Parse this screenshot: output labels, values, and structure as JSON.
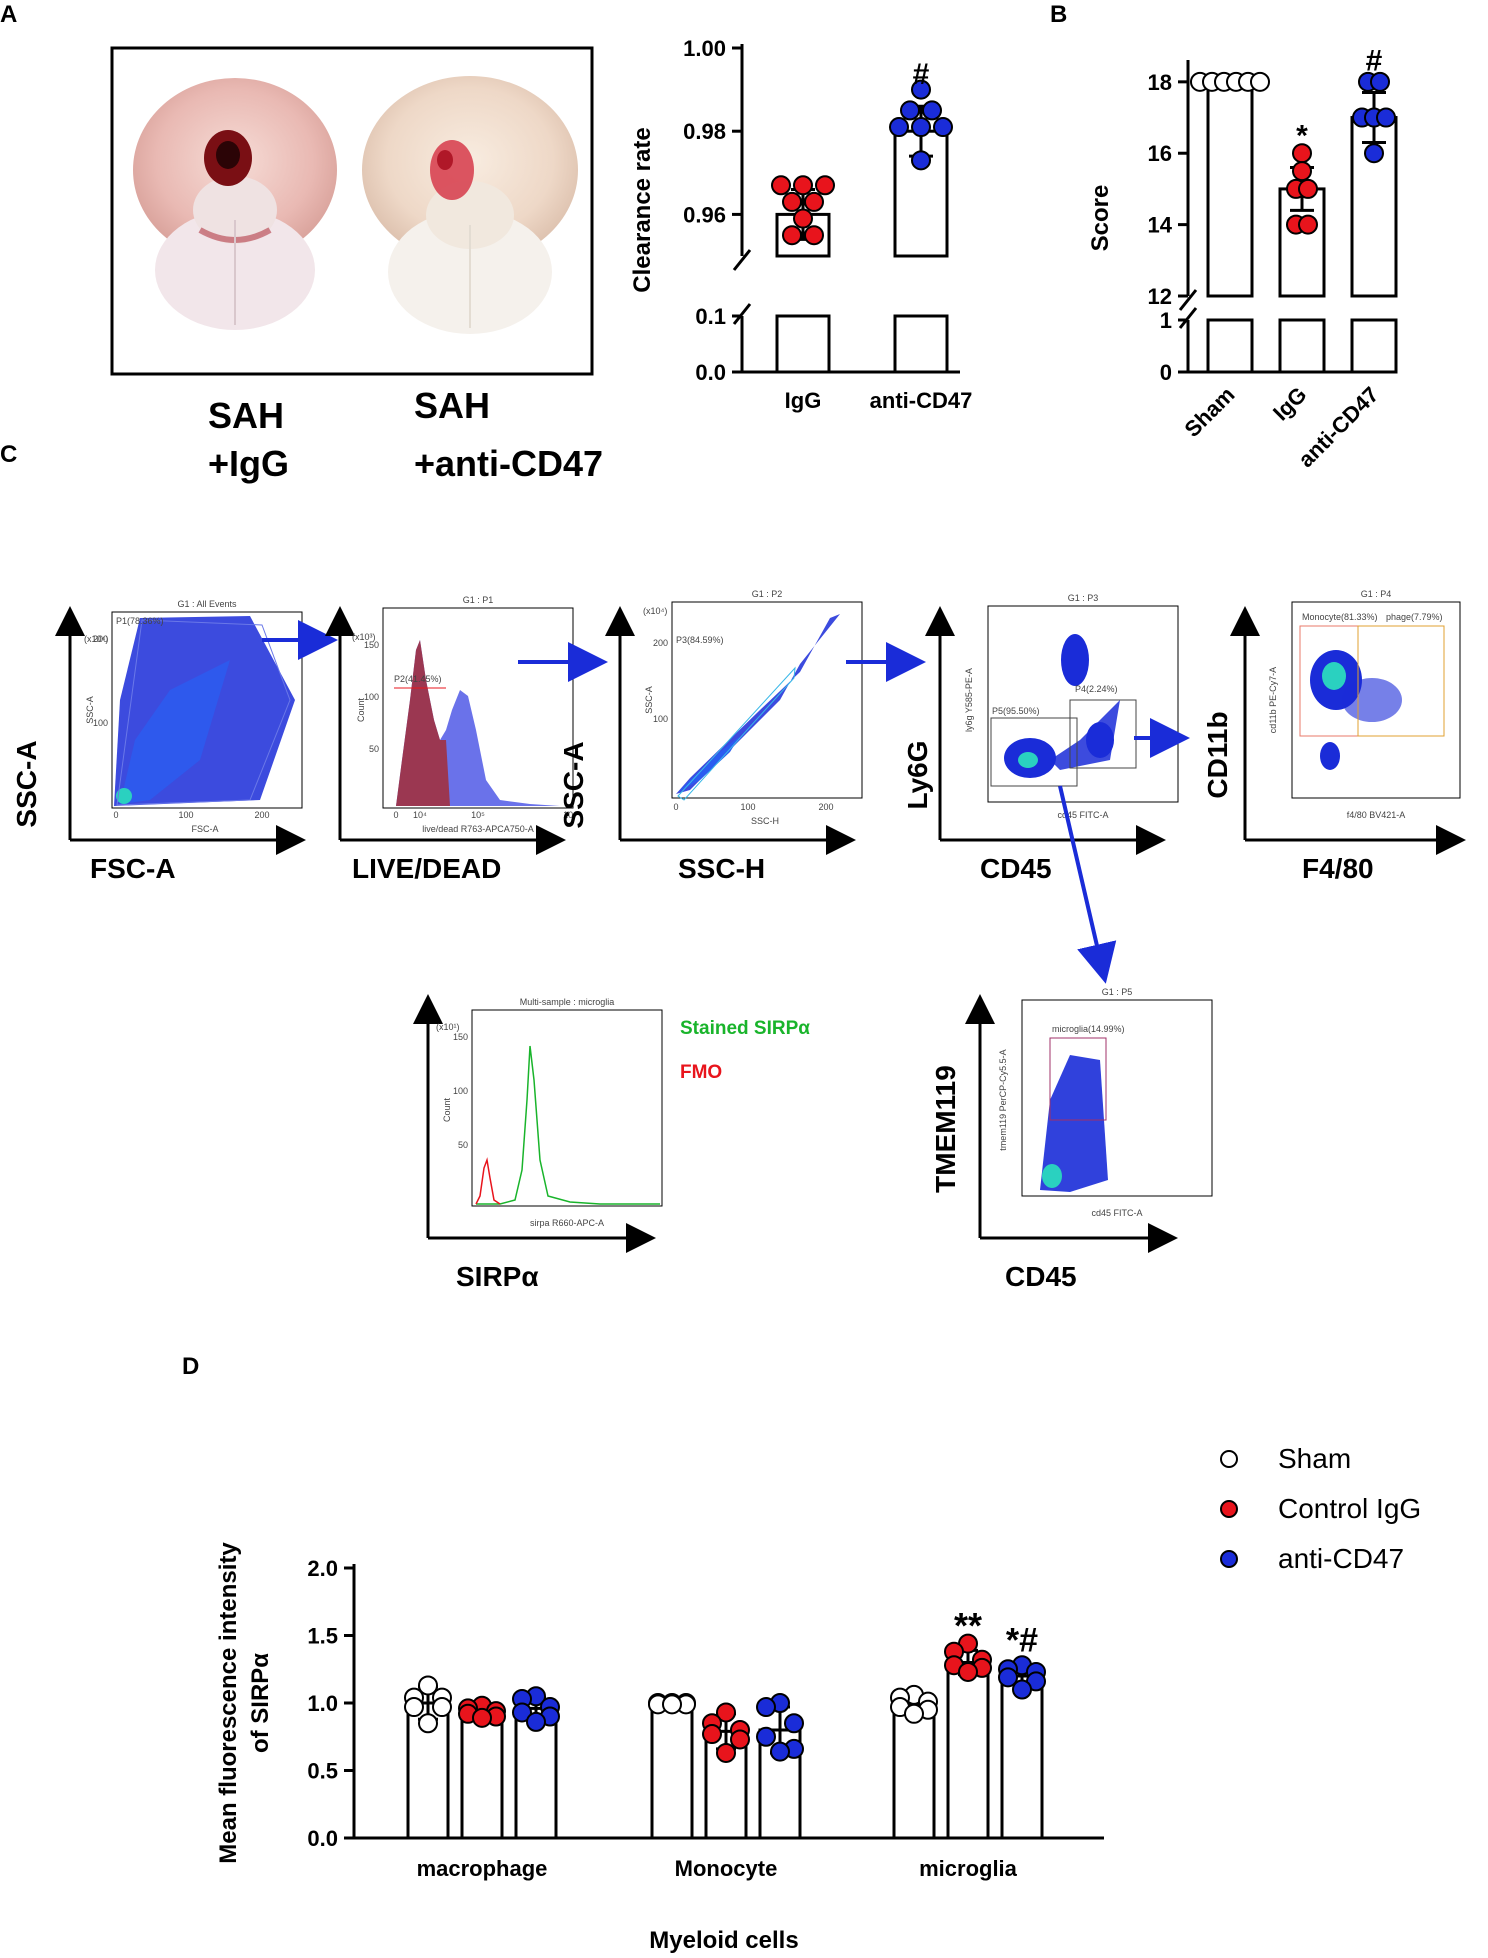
{
  "panel_letters": {
    "a": "A",
    "b": "B",
    "c": "C",
    "d": "D"
  },
  "photo_labels": {
    "left_line1": "SAH",
    "left_line2": "+IgG",
    "right_line1": "SAH",
    "right_line2": "+anti-CD47"
  },
  "colors": {
    "sham": "#ffffff",
    "igg": "#e8141c",
    "anti": "#1a2cd8",
    "blue_flow": "#1a2cd8",
    "green": "#19b42b",
    "red": "#e8141c"
  },
  "chart_data": [
    {
      "id": "A",
      "type": "bar",
      "ylabel": "Clearance rate",
      "categories": [
        "IgG",
        "anti-CD47"
      ],
      "means": [
        0.96,
        0.98
      ],
      "sd": [
        0.006,
        0.006
      ],
      "ylim_upper": [
        0.95,
        1.0
      ],
      "ylim_lower": [
        0.0,
        0.1
      ],
      "yticks_upper": [
        "0.96",
        "0.98",
        "1.00"
      ],
      "yticks_lower": [
        "0.0",
        "0.1"
      ],
      "points": [
        [
          0.967,
          0.967,
          0.967,
          0.963,
          0.963,
          0.959,
          0.955,
          0.955
        ],
        [
          0.99,
          0.985,
          0.985,
          0.981,
          0.981,
          0.981,
          0.973
        ]
      ],
      "annotations": [
        "",
        "#"
      ]
    },
    {
      "id": "B",
      "type": "bar",
      "ylabel": "Score",
      "categories": [
        "Sham",
        "IgG",
        "anti-CD47"
      ],
      "means": [
        18.0,
        15.0,
        17.0
      ],
      "sd": [
        0.0,
        0.6,
        0.7
      ],
      "ylim_upper": [
        12,
        18.5
      ],
      "ylim_lower": [
        0,
        1
      ],
      "yticks_upper": [
        "12",
        "14",
        "16",
        "18"
      ],
      "yticks_lower": [
        "0",
        "1"
      ],
      "points": [
        [
          18,
          18,
          18,
          18,
          18,
          18
        ],
        [
          16,
          15.5,
          15,
          15,
          14,
          14
        ],
        [
          18,
          18,
          17,
          17,
          17,
          16
        ]
      ],
      "annotations": [
        "",
        "*",
        "#"
      ]
    },
    {
      "id": "C-SIRPa-histogram",
      "type": "line",
      "title": "Multi-sample : microglia",
      "xlabel": "SIRPα",
      "series": [
        {
          "name": "Stained SIRPα",
          "color": "#19b42b"
        },
        {
          "name": "FMO",
          "color": "#e8141c"
        }
      ]
    },
    {
      "id": "D",
      "type": "bar",
      "ylabel": "Mean fluorescence intensity of SIRPα",
      "ylabel_line1": "Mean fluorescence intensity",
      "ylabel_line2": "of SIRPα",
      "xlabel": "Myeloid cells",
      "categories": [
        "macrophage",
        "Monocyte",
        "microglia"
      ],
      "ylim": [
        0,
        2.0
      ],
      "yticks": [
        "0.0",
        "0.5",
        "1.0",
        "1.5",
        "2.0"
      ],
      "series": [
        {
          "name": "Sham",
          "means": [
            1.0,
            0.99,
            0.99
          ],
          "sd": [
            0.12,
            0.01,
            0.07
          ],
          "points": [
            [
              1.13,
              1.04,
              1.04,
              0.97,
              0.97,
              0.85
            ],
            [
              1.0,
              1.0,
              1.0,
              0.99,
              0.99,
              0.99
            ],
            [
              1.06,
              1.04,
              1.01,
              0.97,
              0.95,
              0.92
            ]
          ]
        },
        {
          "name": "Control IgG",
          "means": [
            0.93,
            0.79,
            1.3
          ],
          "sd": [
            0.05,
            0.13,
            0.09
          ],
          "points": [
            [
              0.98,
              0.96,
              0.94,
              0.92,
              0.9,
              0.89
            ],
            [
              0.93,
              0.85,
              0.8,
              0.77,
              0.73,
              0.63
            ],
            [
              1.44,
              1.38,
              1.32,
              1.28,
              1.26,
              1.23
            ]
          ]
        },
        {
          "name": "anti-CD47",
          "means": [
            0.96,
            0.8,
            1.2
          ],
          "sd": [
            0.08,
            0.17,
            0.06
          ],
          "points": [
            [
              1.05,
              1.03,
              0.97,
              0.93,
              0.9,
              0.86
            ],
            [
              1.0,
              0.97,
              0.85,
              0.75,
              0.66,
              0.64
            ],
            [
              1.28,
              1.25,
              1.23,
              1.19,
              1.16,
              1.1
            ]
          ]
        }
      ],
      "annotations": {
        "microglia_igg": "**",
        "microglia_anti": "*#"
      },
      "legend": [
        "Sham",
        "Control IgG",
        "anti-CD47"
      ]
    }
  ],
  "flow": {
    "plot1": {
      "title": "G1 : All Events",
      "gate": "P1(78.36%)",
      "y_inner": "SSC-A",
      "x_inner": "FSC-A",
      "exp": "(x10⁴)",
      "ticks_y": [
        "100",
        "200"
      ],
      "ticks_x": [
        "0",
        "100",
        "200"
      ],
      "outer_y": "SSC-A",
      "outer_x": "FSC-A"
    },
    "plot2": {
      "title": "G1 : P1",
      "gate": "P2(41.45%)",
      "y_inner": "Count",
      "x_inner": "live/dead R763-APCA750-A",
      "exp": "(x10³)",
      "ticks_y": [
        "50",
        "100",
        "150"
      ],
      "ticks_x": [
        "0",
        "10⁴",
        "10⁵",
        "10⁶"
      ],
      "outer_x": "LIVE/DEAD"
    },
    "plot3": {
      "title": "G1 : P2",
      "gate": "P3(84.59%)",
      "y_inner": "SSC-A",
      "x_inner": "SSC-H",
      "exp": "(x10⁴)",
      "ticks_y": [
        "100",
        "200"
      ],
      "ticks_x": [
        "0",
        "100",
        "200"
      ],
      "outer_y": "SSC-A",
      "outer_x": "SSC-H"
    },
    "plot4": {
      "title": "G1 : P3",
      "gate_p4": "P4(2.24%)",
      "gate_p5": "P5(95.50%)",
      "y_inner": "ly6g Y585-PE-A",
      "x_inner": "cd45 FITC-A",
      "outer_y": "Ly6G",
      "outer_x": "CD45"
    },
    "plot5": {
      "title": "G1 : P4",
      "gate_mono": "Monocyte(81.33%)",
      "gate_macro": "phage(7.79%)",
      "y_inner": "cd11b PE-Cy7-A",
      "x_inner": "f4/80 BV421-A",
      "outer_y": "CD11b",
      "outer_x": "F4/80"
    },
    "plot6": {
      "title": "G1 : P5",
      "gate": "microglia(14.99%)",
      "y_inner": "tmem119 PerCP-Cy5.5-A",
      "x_inner": "cd45 FITC-A",
      "outer_y": "TMEM119",
      "outer_x": "CD45"
    },
    "plot7": {
      "title": "Multi-sample : microglia",
      "y_inner": "Count",
      "x_inner": "sirpa R660-APC-A",
      "exp": "(x10¹)",
      "ticks_y": [
        "50",
        "100",
        "150"
      ],
      "outer_x": "SIRPα",
      "legend_green": "Stained SIRPα",
      "legend_red": "FMO"
    }
  }
}
